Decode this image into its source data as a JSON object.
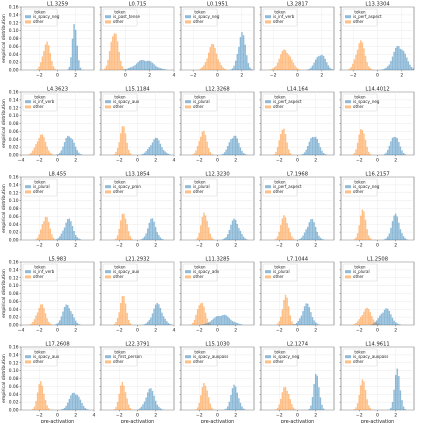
{
  "figure": {
    "ylabel": "empirical distribution",
    "xlabel": "pre-activation",
    "legend_title": "token",
    "other_label": "other",
    "colors": {
      "feature": "#1f77b4",
      "other": "#ff7f0e"
    }
  },
  "chart_data": [
    {
      "type": "area",
      "title": "L1.3259",
      "feature": "is_spacy_neg",
      "xlim": [
        -4,
        4
      ],
      "ylim": [
        0,
        0.16
      ],
      "xticks": [
        -2,
        0,
        2
      ],
      "yticks": [
        0,
        0.02,
        0.04,
        0.06,
        0.08,
        0.1,
        0.12,
        0.14,
        0.16
      ],
      "other": {
        "mu": -1.2,
        "sd": 0.38,
        "peak": 0.07
      },
      "feature_dist": {
        "mu": 1.9,
        "sd": 0.25,
        "peak": 0.12
      }
    },
    {
      "type": "area",
      "title": "L0.715",
      "feature": "is_past_tense",
      "xlim": [
        -2,
        4
      ],
      "ylim": [
        0,
        0.16
      ],
      "xticks": [
        0,
        2,
        4
      ],
      "yticks": [
        0,
        0.02,
        0.04,
        0.06,
        0.08,
        0.1,
        0.12,
        0.14,
        0.16
      ],
      "other": {
        "mu": -0.9,
        "sd": 0.3,
        "peak": 0.1
      },
      "feature_dist": {
        "mu": 1.6,
        "sd": 0.7,
        "peak": 0.025
      }
    },
    {
      "type": "area",
      "title": "L0.1951",
      "feature": "is_spacy_neg",
      "xlim": [
        -3,
        3
      ],
      "ylim": [
        0,
        0.16
      ],
      "xticks": [
        -2,
        0,
        2
      ],
      "yticks": [
        0,
        0.02,
        0.04,
        0.06,
        0.08,
        0.1,
        0.12,
        0.14,
        0.16
      ],
      "other": {
        "mu": -0.4,
        "sd": 0.4,
        "peak": 0.06
      },
      "feature_dist": {
        "mu": 2.0,
        "sd": 0.3,
        "peak": 0.09
      }
    },
    {
      "type": "area",
      "title": "L3.2817",
      "feature": "is_inf_verb",
      "xlim": [
        -3,
        3
      ],
      "ylim": [
        0,
        0.16
      ],
      "xticks": [
        -2,
        0,
        2
      ],
      "yticks": [
        0,
        0.02,
        0.04,
        0.06,
        0.08,
        0.1,
        0.12,
        0.14,
        0.16
      ],
      "other": {
        "mu": -1.0,
        "sd": 0.45,
        "peak": 0.05
      },
      "feature_dist": {
        "mu": 1.9,
        "sd": 0.4,
        "peak": 0.04
      }
    },
    {
      "type": "area",
      "title": "L13.3304",
      "feature": "is_perf_aspect",
      "xlim": [
        -3,
        3
      ],
      "ylim": [
        0,
        0.16
      ],
      "xticks": [
        -2,
        0,
        2
      ],
      "yticks": [
        0,
        0.02,
        0.04,
        0.06,
        0.08,
        0.1,
        0.12,
        0.14,
        0.16
      ],
      "other": {
        "mu": -1.4,
        "sd": 0.35,
        "peak": 0.07
      },
      "feature_dist": {
        "mu": 1.8,
        "sd": 0.5,
        "peak": 0.06
      }
    },
    {
      "type": "area",
      "title": "L4.3623",
      "feature": "is_inf_verb",
      "xlim": [
        -4,
        4
      ],
      "ylim": [
        0,
        0.16
      ],
      "xticks": [
        -4,
        -2,
        0,
        2
      ],
      "yticks": [
        0,
        0.02,
        0.04,
        0.06,
        0.08,
        0.1,
        0.12,
        0.14,
        0.16
      ],
      "other": {
        "mu": -1.8,
        "sd": 0.5,
        "peak": 0.05
      },
      "feature_dist": {
        "mu": 1.3,
        "sd": 0.5,
        "peak": 0.05
      }
    },
    {
      "type": "area",
      "title": "L15.1184",
      "feature": "is_spacy_aux",
      "xlim": [
        -4,
        4
      ],
      "ylim": [
        0,
        0.16
      ],
      "xticks": [
        -2,
        0,
        2,
        4
      ],
      "yticks": [
        0,
        0.02,
        0.04,
        0.06,
        0.08,
        0.1,
        0.12,
        0.14,
        0.16
      ],
      "other": {
        "mu": -1.6,
        "sd": 0.35,
        "peak": 0.07
      },
      "feature_dist": {
        "mu": 2.0,
        "sd": 0.6,
        "peak": 0.04
      }
    },
    {
      "type": "area",
      "title": "L12.3268",
      "feature": "is_plural",
      "xlim": [
        -4,
        4
      ],
      "ylim": [
        0,
        0.16
      ],
      "xticks": [
        -2,
        0,
        2
      ],
      "yticks": [
        0,
        0.02,
        0.04,
        0.06,
        0.08,
        0.1,
        0.12,
        0.14,
        0.16
      ],
      "other": {
        "mu": -1.6,
        "sd": 0.4,
        "peak": 0.06
      },
      "feature_dist": {
        "mu": 1.8,
        "sd": 0.5,
        "peak": 0.05
      }
    },
    {
      "type": "area",
      "title": "L14.164",
      "feature": "is_perf_aspect",
      "xlim": [
        -4,
        4
      ],
      "ylim": [
        0,
        0.16
      ],
      "xticks": [
        -2,
        0,
        2
      ],
      "yticks": [
        0,
        0.02,
        0.04,
        0.06,
        0.08,
        0.1,
        0.12,
        0.14,
        0.16
      ],
      "other": {
        "mu": -1.6,
        "sd": 0.35,
        "peak": 0.07
      },
      "feature_dist": {
        "mu": 1.8,
        "sd": 0.5,
        "peak": 0.05
      }
    },
    {
      "type": "area",
      "title": "L14.4012",
      "feature": "is_spacy_neg",
      "xlim": [
        -4,
        4
      ],
      "ylim": [
        0,
        0.16
      ],
      "xticks": [
        -2,
        0,
        2
      ],
      "yticks": [
        0,
        0.02,
        0.04,
        0.06,
        0.08,
        0.1,
        0.12,
        0.14,
        0.16
      ],
      "other": {
        "mu": -1.7,
        "sd": 0.35,
        "peak": 0.07
      },
      "feature_dist": {
        "mu": 1.9,
        "sd": 0.45,
        "peak": 0.05
      }
    },
    {
      "type": "area",
      "title": "L8.455",
      "feature": "is_plural",
      "xlim": [
        -4,
        4
      ],
      "ylim": [
        0,
        0.16
      ],
      "xticks": [
        -2,
        0,
        2
      ],
      "yticks": [
        0,
        0.02,
        0.04,
        0.06,
        0.08,
        0.1,
        0.12,
        0.14,
        0.16
      ],
      "other": {
        "mu": -1.3,
        "sd": 0.4,
        "peak": 0.06
      },
      "feature_dist": {
        "mu": 1.2,
        "sd": 0.5,
        "peak": 0.05
      }
    },
    {
      "type": "area",
      "title": "L13.1854",
      "feature": "is_spacy_pron",
      "xlim": [
        -4,
        4
      ],
      "ylim": [
        0,
        0.16
      ],
      "xticks": [
        -2,
        0,
        2
      ],
      "yticks": [
        0,
        0.02,
        0.04,
        0.06,
        0.08,
        0.1,
        0.12,
        0.14,
        0.16
      ],
      "other": {
        "mu": -1.5,
        "sd": 0.35,
        "peak": 0.07
      },
      "feature_dist": {
        "mu": 1.6,
        "sd": 0.45,
        "peak": 0.05
      }
    },
    {
      "type": "area",
      "title": "L12.3230",
      "feature": "is_plural",
      "xlim": [
        -4,
        4
      ],
      "ylim": [
        0,
        0.16
      ],
      "xticks": [
        -2,
        0,
        2
      ],
      "yticks": [
        0,
        0.02,
        0.04,
        0.06,
        0.08,
        0.1,
        0.12,
        0.14,
        0.16
      ],
      "other": {
        "mu": -1.4,
        "sd": 0.35,
        "peak": 0.07
      },
      "feature_dist": {
        "mu": 1.9,
        "sd": 0.5,
        "peak": 0.05
      }
    },
    {
      "type": "area",
      "title": "L7.1968",
      "feature": "is_perf_aspect",
      "xlim": [
        -4,
        4
      ],
      "ylim": [
        0,
        0.16
      ],
      "xticks": [
        -2,
        0,
        2
      ],
      "yticks": [
        0,
        0.02,
        0.04,
        0.06,
        0.08,
        0.1,
        0.12,
        0.14,
        0.16
      ],
      "other": {
        "mu": -1.4,
        "sd": 0.4,
        "peak": 0.06
      },
      "feature_dist": {
        "mu": 1.5,
        "sd": 0.5,
        "peak": 0.05
      }
    },
    {
      "type": "area",
      "title": "L16.2157",
      "feature": "is_spacy_neg",
      "xlim": [
        -4,
        4
      ],
      "ylim": [
        0,
        0.16
      ],
      "xticks": [
        -2,
        0,
        2
      ],
      "yticks": [
        0,
        0.02,
        0.04,
        0.06,
        0.08,
        0.1,
        0.12,
        0.14,
        0.16
      ],
      "other": {
        "mu": -1.6,
        "sd": 0.35,
        "peak": 0.07
      },
      "feature_dist": {
        "mu": 2.0,
        "sd": 0.45,
        "peak": 0.06
      }
    },
    {
      "type": "area",
      "title": "L5.983",
      "feature": "is_inf_verb",
      "xlim": [
        -4,
        4
      ],
      "ylim": [
        0,
        0.16
      ],
      "xticks": [
        -4,
        -2,
        0,
        2
      ],
      "yticks": [
        0,
        0.02,
        0.04,
        0.06,
        0.08,
        0.1,
        0.12,
        0.14,
        0.16
      ],
      "other": {
        "mu": -1.8,
        "sd": 0.45,
        "peak": 0.05
      },
      "feature_dist": {
        "mu": 1.1,
        "sd": 0.5,
        "peak": 0.05
      }
    },
    {
      "type": "area",
      "title": "L21.2932",
      "feature": "is_spacy_aux",
      "xlim": [
        -4,
        4
      ],
      "ylim": [
        0,
        0.16
      ],
      "xticks": [
        -2,
        0,
        2,
        4
      ],
      "yticks": [
        0,
        0.02,
        0.04,
        0.06,
        0.08,
        0.1,
        0.12,
        0.14,
        0.16
      ],
      "other": {
        "mu": -1.6,
        "sd": 0.35,
        "peak": 0.07
      },
      "feature_dist": {
        "mu": 2.2,
        "sd": 0.55,
        "peak": 0.05
      }
    },
    {
      "type": "area",
      "title": "L11.3285",
      "feature": "is_spacy_adv",
      "xlim": [
        -4,
        4
      ],
      "ylim": [
        0,
        0.16
      ],
      "xticks": [
        -2,
        0,
        2
      ],
      "yticks": [
        0,
        0.02,
        0.04,
        0.06,
        0.08,
        0.1,
        0.12,
        0.14,
        0.16
      ],
      "other": {
        "mu": -1.8,
        "sd": 0.4,
        "peak": 0.06
      },
      "feature_dist": {
        "mu": 0.5,
        "sd": 0.9,
        "peak": 0.025
      }
    },
    {
      "type": "area",
      "title": "L7.1044",
      "feature": "is_plural",
      "xlim": [
        -4,
        4
      ],
      "ylim": [
        0,
        0.16
      ],
      "xticks": [
        -2,
        0,
        2
      ],
      "yticks": [
        0,
        0.02,
        0.04,
        0.06,
        0.08,
        0.1,
        0.12,
        0.14,
        0.16
      ],
      "other": {
        "mu": -1.3,
        "sd": 0.35,
        "peak": 0.07
      },
      "feature_dist": {
        "mu": 1.0,
        "sd": 0.5,
        "peak": 0.05
      }
    },
    {
      "type": "area",
      "title": "L1.2508",
      "feature": "is_plural",
      "xlim": [
        -4,
        4
      ],
      "ylim": [
        0,
        0.16
      ],
      "xticks": [
        -2,
        0,
        2
      ],
      "yticks": [
        0,
        0.02,
        0.04,
        0.06,
        0.08,
        0.1,
        0.12,
        0.14,
        0.16
      ],
      "other": {
        "mu": -1.2,
        "sd": 0.55,
        "peak": 0.04
      },
      "feature_dist": {
        "mu": 0.9,
        "sd": 0.6,
        "peak": 0.04
      }
    },
    {
      "type": "area",
      "title": "L17.2608",
      "feature": "is_spacy_aux",
      "xlim": [
        -4,
        4
      ],
      "ylim": [
        0,
        0.16
      ],
      "xticks": [
        -2,
        0,
        2,
        4
      ],
      "yticks": [
        0,
        0.02,
        0.04,
        0.06,
        0.08,
        0.1,
        0.12,
        0.14,
        0.16
      ],
      "other": {
        "mu": -1.8,
        "sd": 0.35,
        "peak": 0.07
      },
      "feature_dist": {
        "mu": 1.9,
        "sd": 0.55,
        "peak": 0.045
      }
    },
    {
      "type": "area",
      "title": "L22.3791",
      "feature": "is_first_person",
      "xlim": [
        -4,
        4
      ],
      "ylim": [
        0,
        0.16
      ],
      "xticks": [
        -2,
        0,
        2
      ],
      "yticks": [
        0,
        0.02,
        0.04,
        0.06,
        0.08,
        0.1,
        0.12,
        0.14,
        0.16
      ],
      "other": {
        "mu": -1.6,
        "sd": 0.35,
        "peak": 0.07
      },
      "feature_dist": {
        "mu": 1.4,
        "sd": 0.5,
        "peak": 0.05
      }
    },
    {
      "type": "area",
      "title": "L15.1030",
      "feature": "is_spacy_auxpass",
      "xlim": [
        -4,
        4
      ],
      "ylim": [
        0,
        0.16
      ],
      "xticks": [
        -2,
        0,
        2
      ],
      "yticks": [
        0,
        0.02,
        0.04,
        0.06,
        0.08,
        0.1,
        0.12,
        0.14,
        0.16
      ],
      "other": {
        "mu": -1.4,
        "sd": 0.35,
        "peak": 0.07
      },
      "feature_dist": {
        "mu": 1.9,
        "sd": 0.4,
        "peak": 0.06
      }
    },
    {
      "type": "area",
      "title": "L2.1274",
      "feature": "is_spacy_neg",
      "xlim": [
        -4,
        4
      ],
      "ylim": [
        0,
        0.16
      ],
      "xticks": [
        -2,
        0,
        2
      ],
      "yticks": [
        0,
        0.02,
        0.04,
        0.06,
        0.08,
        0.1,
        0.12,
        0.14,
        0.16
      ],
      "other": {
        "mu": -1.3,
        "sd": 0.4,
        "peak": 0.06
      },
      "feature_dist": {
        "mu": 2.1,
        "sd": 0.3,
        "peak": 0.09
      }
    },
    {
      "type": "area",
      "title": "L14.9611",
      "feature": "is_spacy_auxpass",
      "xlim": [
        -4,
        4
      ],
      "ylim": [
        0,
        0.16
      ],
      "xticks": [
        -2,
        0,
        2
      ],
      "yticks": [
        0,
        0.02,
        0.04,
        0.06,
        0.08,
        0.1,
        0.12,
        0.14,
        0.16
      ],
      "other": {
        "mu": -1.6,
        "sd": 0.35,
        "peak": 0.07
      },
      "feature_dist": {
        "mu": 2.2,
        "sd": 0.3,
        "peak": 0.1
      }
    }
  ]
}
